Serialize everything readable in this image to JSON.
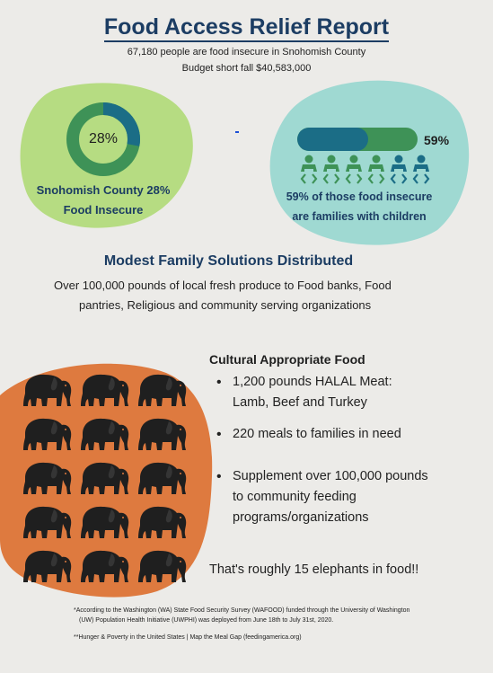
{
  "header": {
    "title": "Food Access Relief Report",
    "line1": "67,180 people are food insecure in Snohomish County",
    "line2": "Budget short fall $40,583,000"
  },
  "left_stat": {
    "percent_label": "28%",
    "percent_value": 0.28,
    "caption_line1": "Snohomish County 28%",
    "caption_line2": "Food Insecure"
  },
  "right_stat": {
    "percent_label": "59%",
    "percent_value": 0.59,
    "caption_line1": "59% of those food insecure",
    "caption_line2": "are families with children",
    "figures_total": 6,
    "figures_highlighted": 4
  },
  "distribution": {
    "heading": "Modest Family Solutions Distributed",
    "line1": "Over 100,000 pounds of local fresh produce to Food banks, Food",
    "line2": "pantries, Religious and community serving organizations"
  },
  "cultural": {
    "heading": "Cultural Appropriate Food",
    "items": [
      {
        "line1": "1,200 pounds HALAL Meat:",
        "line2": "Lamb, Beef and Turkey"
      },
      {
        "line1": "220 meals to families in need"
      },
      {
        "line1": "Supplement over 100,000 pounds",
        "line2": "to community feeding",
        "line3": "programs/organizations"
      }
    ],
    "elephant_count": 15,
    "summary": "That's roughly 15 elephants in food!!"
  },
  "footnotes": {
    "note1_line1": "*According to the Washington (WA) State Food Security Survey (WAFOOD) funded through the University of Washington",
    "note1_line2": "(UW) Population Health Initiative (UWPHI) was deployed from June 18th to July 31st, 2020.",
    "note2": "**Hunger & Poverty in the United States | Map the Meal Gap (feedingamerica.org)"
  },
  "colors": {
    "navy": "#1c3d63",
    "lime_blob": "#b6dc82",
    "teal_blob": "#9fd9d2",
    "orange_blob": "#de7a3f",
    "green": "#3e9257",
    "teal_figure": "#1b6d86",
    "donut_dark": "#1b6d86",
    "background": "#ecebe8"
  }
}
